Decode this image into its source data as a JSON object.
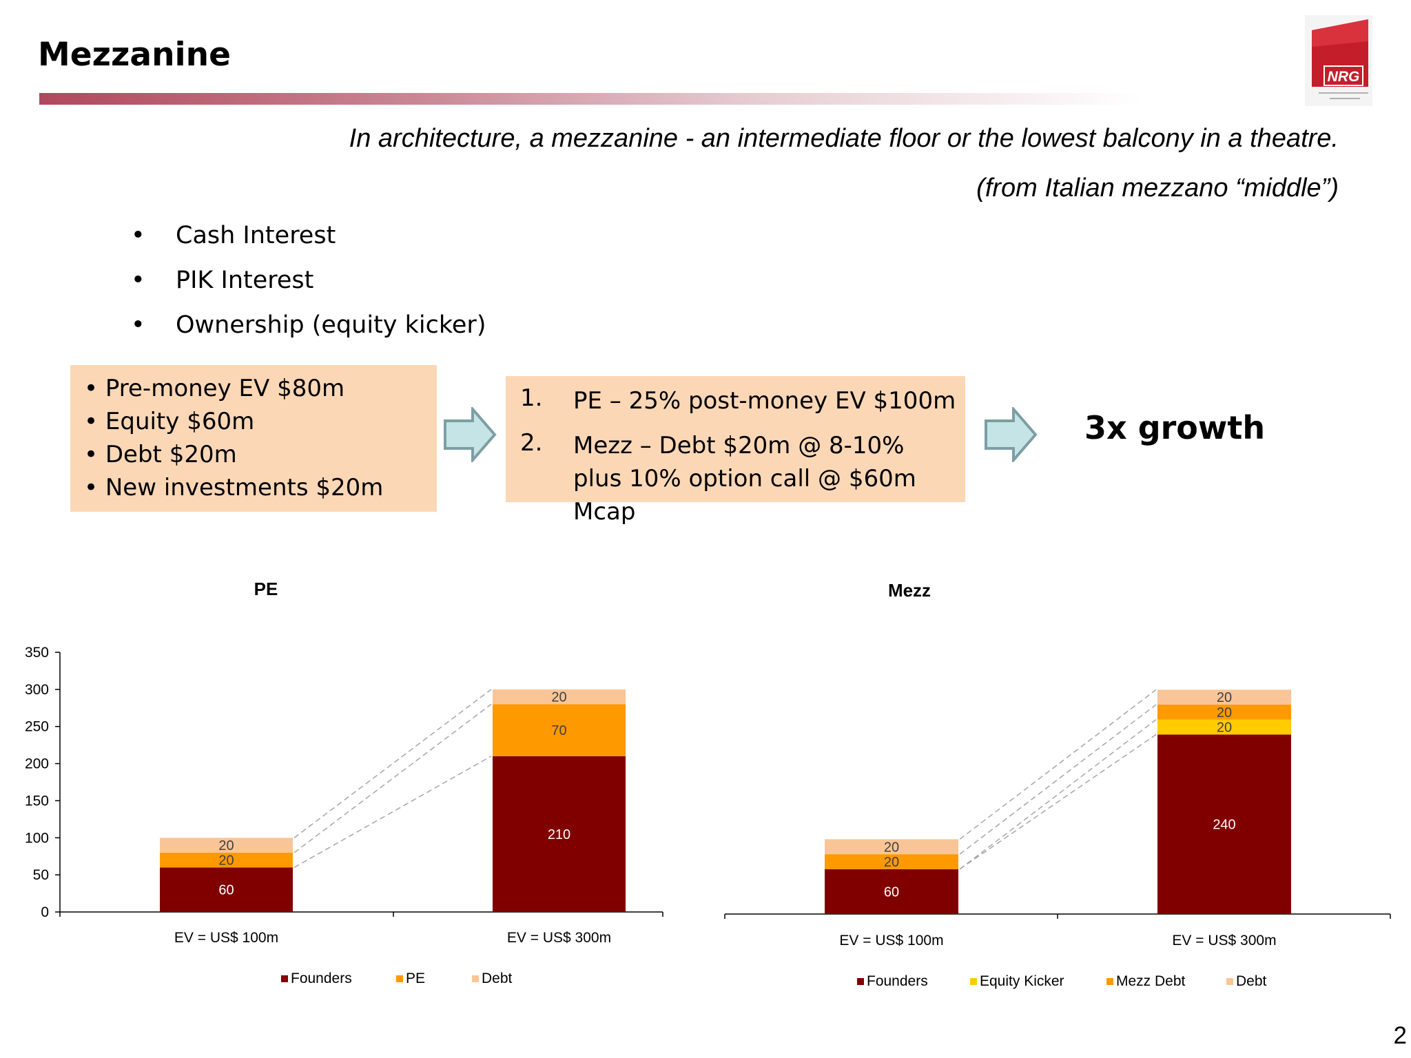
{
  "slide": {
    "title": "Mezzanine",
    "quote_line1": "In architecture, a mezzanine - an intermediate floor  or the lowest balcony in a theatre.",
    "quote_line2": "(from Italian mezzano “middle”)",
    "logo_text": "NRG",
    "page_number": "2",
    "accent_color": "#b0485c"
  },
  "bullets": [
    "Cash Interest",
    "PIK Interest",
    "Ownership (equity kicker)"
  ],
  "box1": [
    "Pre-money EV $80m",
    "Equity $60m",
    "Debt $20m",
    "New investments $20m"
  ],
  "box2": [
    {
      "num": "1.",
      "text": "PE – 25% post-money EV $100m"
    },
    {
      "num": "2.",
      "text": "Mezz – Debt $20m @ 8-10%  plus 10% option call @ $60m Mcap"
    }
  ],
  "growth_label": "3x growth",
  "chart_data": [
    {
      "type": "bar",
      "stacked": true,
      "title": "PE",
      "categories": [
        "EV = US$ 100m",
        "EV = US$ 300m"
      ],
      "series": [
        {
          "name": "Founders",
          "values": [
            60,
            210
          ],
          "color": "#800000",
          "label_color": "#ffffff"
        },
        {
          "name": "PE",
          "values": [
            20,
            70
          ],
          "color": "#ff9900",
          "label_color": "#404040"
        },
        {
          "name": "Debt",
          "values": [
            20,
            20
          ],
          "color": "#fac596",
          "label_color": "#404040"
        }
      ],
      "ylim": [
        0,
        350
      ],
      "yticks": [
        0,
        50,
        100,
        150,
        200,
        250,
        300,
        350
      ],
      "show_y_axis": true,
      "legend": "bottom"
    },
    {
      "type": "bar",
      "stacked": true,
      "title": "Mezz",
      "categories": [
        "EV = US$ 100m",
        "EV = US$ 300m"
      ],
      "series": [
        {
          "name": "Founders",
          "values": [
            60,
            240
          ],
          "color": "#800000",
          "label_color": "#ffffff"
        },
        {
          "name": "Equity Kicker",
          "values": [
            0,
            20
          ],
          "color": "#ffcc00",
          "label_color": "#404040"
        },
        {
          "name": "Mezz Debt",
          "values": [
            20,
            20
          ],
          "color": "#ff9900",
          "label_color": "#404040"
        },
        {
          "name": "Debt",
          "values": [
            20,
            20
          ],
          "color": "#fac596",
          "label_color": "#404040"
        }
      ],
      "ylim": [
        0,
        350
      ],
      "show_y_axis": false,
      "legend": "bottom"
    }
  ]
}
